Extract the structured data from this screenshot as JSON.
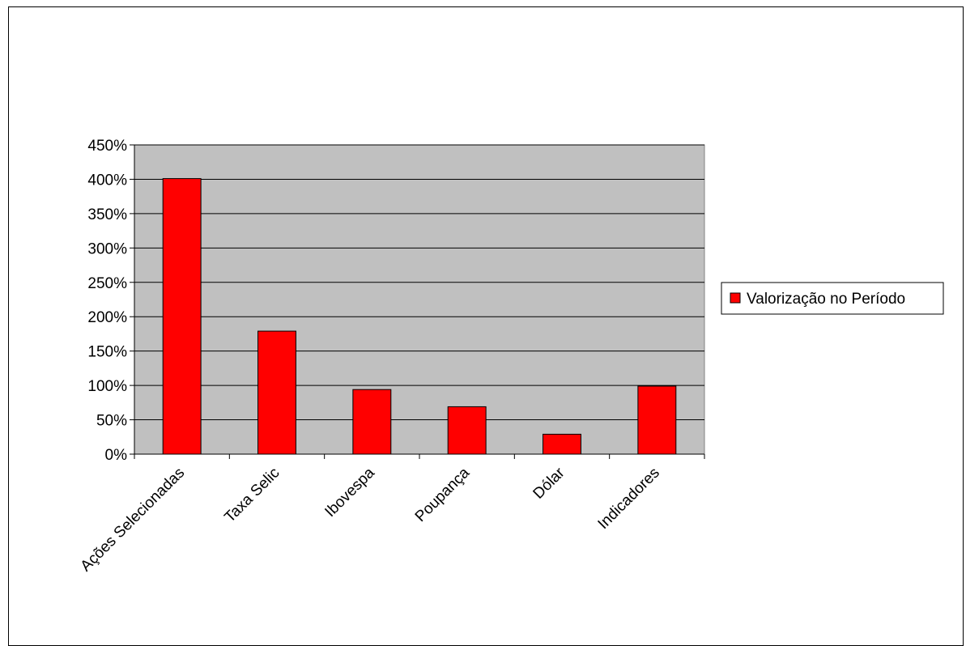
{
  "chart_data": {
    "type": "bar",
    "categories": [
      "Ações Selecionadas",
      "Taxa Selic",
      "Ibovespa",
      "Poupança",
      "Dólar",
      "Indicadores"
    ],
    "series": [
      {
        "name": "Valorização no Período",
        "values": [
          401,
          179,
          94,
          69,
          29,
          99
        ],
        "color": "#ff0000"
      }
    ],
    "ylim": [
      0,
      450
    ],
    "yticks": [
      0,
      50,
      100,
      150,
      200,
      250,
      300,
      350,
      400,
      450
    ],
    "ytick_labels": [
      "0%",
      "50%",
      "100%",
      "150%",
      "200%",
      "250%",
      "300%",
      "350%",
      "400%",
      "450%"
    ],
    "grid": true,
    "plot_background": "#c0c0c0",
    "legend_position": "right",
    "title": "",
    "xlabel": "",
    "ylabel": ""
  }
}
